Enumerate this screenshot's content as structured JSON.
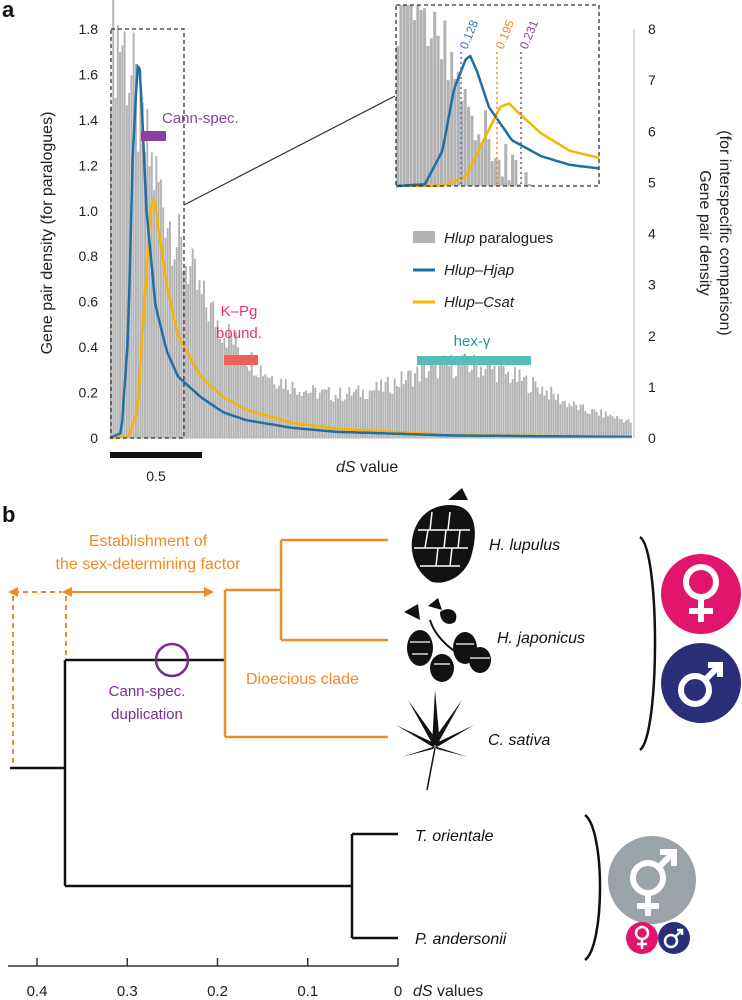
{
  "panel_a": {
    "label": "a",
    "ylabel_left": "Gene pair density (for paralogues)",
    "ylabel_right_line1": "Gene pair density",
    "ylabel_right_line2": "(for interspecific comparison)",
    "xlabel_italic": "dS",
    "xlabel_rest": " value",
    "scale_bar_label": "0.5",
    "left_ticks": [
      "0",
      "0.2",
      "0.4",
      "0.6",
      "0.8",
      "1.0",
      "1.2",
      "1.4",
      "1.6",
      "1.8"
    ],
    "right_ticks": [
      "0",
      "1",
      "2",
      "3",
      "4",
      "5",
      "6",
      "7",
      "8"
    ],
    "annotations": {
      "cann_spec": "Cann-spec.",
      "kpg_line1": "K–Pg",
      "kpg_line2": "bound.",
      "hex": "hex-γ"
    },
    "legend": [
      {
        "italic": "Hlup",
        "rest": " paralogues",
        "color": "#b3b3b3"
      },
      {
        "italic": "Hlup–Hjap",
        "rest": "",
        "color": "#1f6fa3"
      },
      {
        "italic": "Hlup–Csat",
        "rest": "",
        "color": "#f7b500"
      }
    ],
    "inset_markers": [
      {
        "label": "0.128",
        "color": "#4a78a8"
      },
      {
        "label": "0.195",
        "color": "#f08a24"
      },
      {
        "label": "0.231",
        "color": "#8c3f9f"
      }
    ],
    "colors": {
      "cann_spec": "#8c3f9f",
      "kpg": "#e8336e",
      "kpg_bar": "#f0605a",
      "hex": "#1a9c96",
      "hex_bar": "#56bdb8"
    }
  },
  "panel_b": {
    "label": "b",
    "establishment_line1": "Establishment of",
    "establishment_line2": "the sex-determining factor",
    "cann_dup_line1": "Cann-spec.",
    "cann_dup_line2": "duplication",
    "dioecious": "Dioecious clade",
    "species": [
      "H. lupulus",
      "H. japonicus",
      "C. sativa",
      "T. orientale",
      "P. andersonii"
    ],
    "axis_ticks": [
      "0.4",
      "0.3",
      "0.2",
      "0.1",
      "0"
    ],
    "axis_label_italic": "dS",
    "axis_label_rest": " values",
    "colors": {
      "orange": "#f08a24",
      "purple": "#7b2d8e",
      "female": "#e0156b",
      "male": "#2b2f7a",
      "hermaphrodite": "#9aa3a8"
    }
  },
  "chart_data": {
    "type": "area",
    "xlabel": "dS value",
    "ylabel": "Gene pair density (for paralogues)",
    "ylabel_right": "Gene pair density (for interspecific comparison)",
    "ylim": [
      0,
      1.8
    ],
    "ylim_right": [
      0,
      8
    ],
    "xlim": [
      0,
      2.3
    ],
    "legend_position": "right",
    "series": [
      {
        "name": "Hlup paralogues",
        "axis": "left",
        "type": "bar",
        "x": [
          0.05,
          0.1,
          0.15,
          0.2,
          0.25,
          0.3,
          0.35,
          0.4,
          0.5,
          0.6,
          0.7,
          0.8,
          0.9,
          1.0,
          1.1,
          1.2,
          1.3,
          1.4,
          1.5,
          1.6,
          1.7,
          1.8,
          1.9,
          2.0,
          2.1,
          2.2,
          2.3
        ],
        "values": [
          1.78,
          1.55,
          1.3,
          1.15,
          1.0,
          0.85,
          0.75,
          0.62,
          0.48,
          0.36,
          0.28,
          0.23,
          0.2,
          0.19,
          0.2,
          0.22,
          0.26,
          0.3,
          0.32,
          0.32,
          0.3,
          0.26,
          0.22,
          0.16,
          0.12,
          0.1,
          0.07
        ]
      },
      {
        "name": "Hlup–Hjap",
        "axis": "right",
        "type": "line",
        "x": [
          0.0,
          0.05,
          0.08,
          0.1,
          0.12,
          0.128,
          0.14,
          0.16,
          0.2,
          0.25,
          0.3,
          0.4,
          0.5,
          0.6,
          0.8,
          1.0,
          1.5,
          2.3
        ],
        "values": [
          0.0,
          0.1,
          2.0,
          5.5,
          7.2,
          7.4,
          6.5,
          4.5,
          2.6,
          1.7,
          1.2,
          0.8,
          0.5,
          0.35,
          0.2,
          0.12,
          0.05,
          0.02
        ]
      },
      {
        "name": "Hlup–Csat",
        "axis": "right",
        "type": "line",
        "x": [
          0.0,
          0.08,
          0.12,
          0.16,
          0.18,
          0.195,
          0.21,
          0.25,
          0.3,
          0.4,
          0.5,
          0.6,
          0.8,
          1.0,
          1.5,
          2.3
        ],
        "values": [
          0.0,
          0.02,
          0.5,
          3.2,
          4.5,
          4.7,
          4.2,
          3.0,
          2.0,
          1.2,
          0.8,
          0.55,
          0.3,
          0.18,
          0.06,
          0.02
        ]
      }
    ],
    "annotations": [
      {
        "label": "Cann-spec.",
        "x_range": [
          0.16,
          0.29
        ],
        "y": 1.33
      },
      {
        "label": "K–Pg bound.",
        "x_range": [
          0.6,
          0.76
        ],
        "y": 0.34
      },
      {
        "label": "hex-γ",
        "x_range": [
          1.5,
          2.02
        ],
        "y": 0.34
      }
    ],
    "inset_values": [
      0.128,
      0.195,
      0.231
    ]
  }
}
